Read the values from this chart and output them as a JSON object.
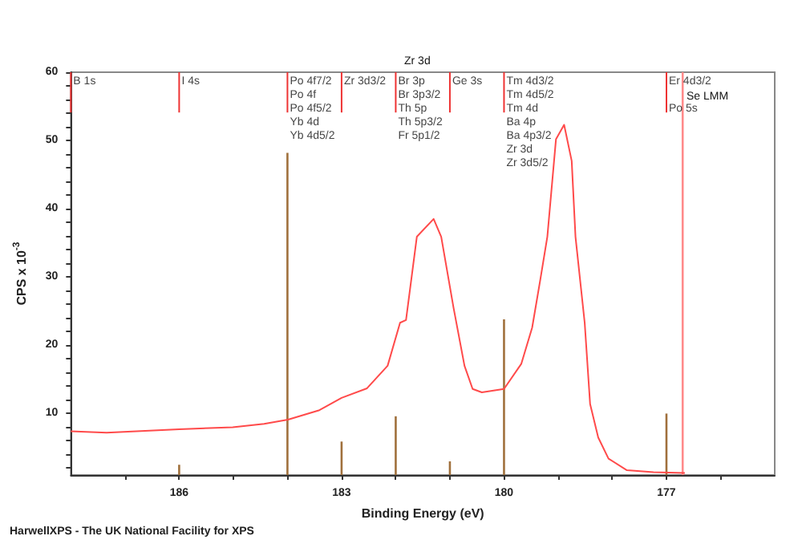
{
  "chart_data": {
    "type": "line",
    "xlabel": "Binding Energy (eV)",
    "ylabel": "CPS x 10$^{-3}$",
    "xlim": [
      188,
      175
    ],
    "xticks": [
      {
        "value": 187,
        "label": null
      },
      186,
      {
        "value": 185,
        "label": null
      },
      {
        "value": 184,
        "label": null
      },
      183,
      {
        "value": 182,
        "label": null
      },
      {
        "value": 181,
        "label": null
      },
      180,
      {
        "value": 179,
        "label": null
      },
      {
        "value": 178,
        "label": null
      },
      177,
      {
        "value": 176,
        "label": null
      }
    ],
    "ylim": [
      1,
      60
    ],
    "yticks": [
      {
        "value": 2,
        "label": null
      },
      {
        "value": 4,
        "label": null
      },
      {
        "value": 6,
        "label": null
      },
      {
        "value": 8,
        "label": null
      },
      10,
      {
        "value": 12,
        "label": null
      },
      {
        "value": 14,
        "label": null
      },
      {
        "value": 16,
        "label": null
      },
      {
        "value": 18,
        "label": null
      },
      20,
      {
        "value": 22,
        "label": null
      },
      {
        "value": 24,
        "label": null
      },
      {
        "value": 26,
        "label": null
      },
      {
        "value": 28,
        "label": null
      },
      30,
      {
        "value": 32,
        "label": null
      },
      {
        "value": 34,
        "label": null
      },
      {
        "value": 36,
        "label": null
      },
      {
        "value": 38,
        "label": null
      },
      40,
      {
        "value": 42,
        "label": null
      },
      {
        "value": 44,
        "label": null
      },
      {
        "value": 46,
        "label": null
      },
      {
        "value": 48,
        "label": null
      },
      50,
      {
        "value": 52,
        "label": null
      },
      {
        "value": 54,
        "label": null
      },
      {
        "value": 56,
        "label": null
      },
      {
        "value": 58,
        "label": null
      },
      60
    ],
    "grid": false,
    "legend": false,
    "marker": "none",
    "series": [
      {
        "color": "#ff4a4a",
        "x": [
          188.0,
          187.34,
          186.0,
          185.01,
          184.43,
          183.99,
          183.41,
          183.0,
          182.53,
          182.15,
          181.92,
          181.81,
          181.61,
          181.3,
          181.16,
          180.93,
          180.73,
          180.58,
          180.41,
          180.0,
          179.68,
          179.48,
          179.33,
          179.2,
          179.04,
          178.89,
          178.75,
          178.68,
          178.51,
          178.41,
          178.26,
          178.07,
          177.73,
          177.24,
          176.66
        ],
        "values": [
          7.4,
          7.2,
          7.7,
          8.0,
          8.5,
          9.1,
          10.5,
          12.3,
          13.7,
          17.0,
          23.3,
          23.7,
          35.9,
          38.5,
          35.9,
          25.4,
          17.0,
          13.6,
          13.1,
          13.6,
          17.3,
          22.6,
          29.6,
          35.9,
          50.2,
          52.3,
          47.0,
          35.9,
          23.3,
          11.4,
          6.5,
          3.4,
          1.7,
          1.4,
          1.3
        ]
      },
      {
        "type": "bar",
        "color": "#a0703c",
        "x": [
          186,
          184,
          183,
          182,
          181,
          180,
          177
        ],
        "values": [
          2.5,
          48.2,
          5.9,
          9.6,
          3.0,
          23.8,
          10.0
        ]
      },
      {
        "type": "bar",
        "name": "Se LMM",
        "color": "#ff8a8a",
        "x": [
          176.7
        ],
        "values": [
          60
        ]
      }
    ],
    "ref_lines": [
      {
        "axis": "x",
        "value": 188,
        "label": "B 1s",
        "color": "#ee3333"
      },
      {
        "axis": "x",
        "value": 186,
        "label": "I 4s",
        "color": "#ee3333"
      },
      {
        "axis": "x",
        "value": 184,
        "label": "Po 4f7/2\nPo 4f\nPo 4f5/2\nYb 4d\nYb 4d5/2",
        "color": "#ee3333"
      },
      {
        "axis": "x",
        "value": 183,
        "label": "Zr 3d3/2",
        "color": "#ee3333"
      },
      {
        "axis": "x",
        "value": 182,
        "label": "Br 3p\nBr 3p3/2\nTh 5p\nTh 5p3/2\nFr 5p1/2",
        "color": "#ee3333"
      },
      {
        "axis": "x",
        "value": 181,
        "label": "Ge 3s",
        "color": "#ee3333"
      },
      {
        "axis": "x",
        "value": 180,
        "label": "Tm 4d3/2\nTm 4d5/2\nTm 4d\nBa 4p\nBa 4p3/2\nZr 3d\nZr 3d5/2",
        "color": "#ee3333"
      },
      {
        "axis": "x",
        "value": 177,
        "label": "Er 4d3/2\n\nPo 5s",
        "color": "#ee3333"
      }
    ],
    "annotations": [
      "Zr 3d",
      "HarwellXPS - The UK National Facility for XPS"
    ]
  }
}
